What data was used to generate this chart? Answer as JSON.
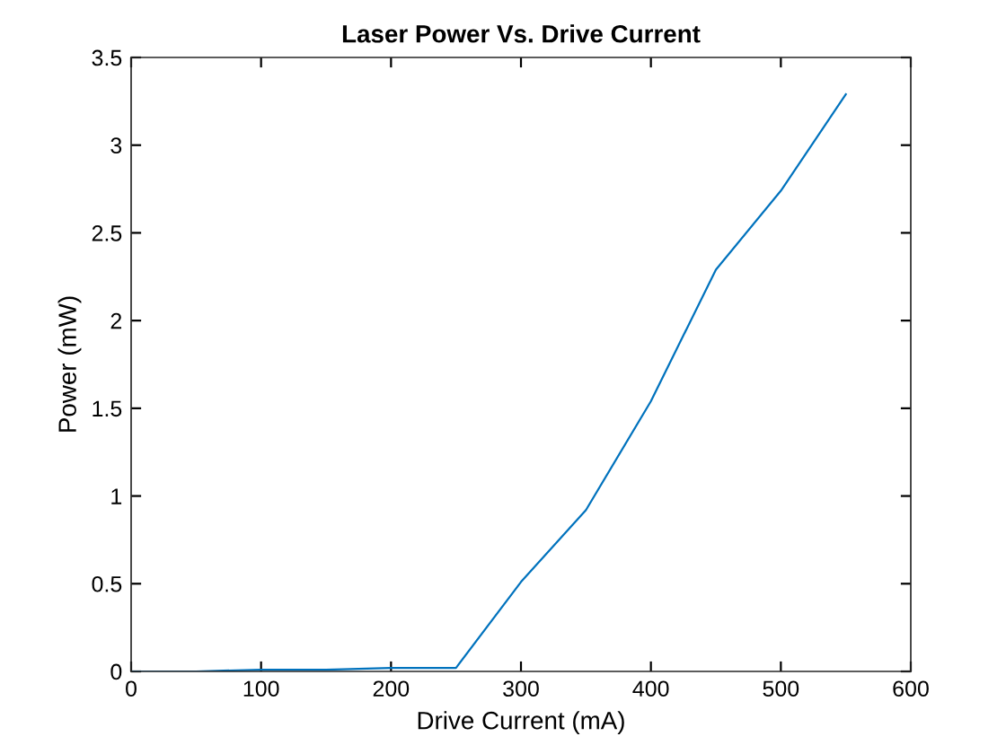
{
  "chart_data": {
    "type": "line",
    "title": "Laser Power Vs. Drive Current",
    "xlabel": "Drive Current (mA)",
    "ylabel": "Power (mW)",
    "x": [
      0,
      50,
      100,
      150,
      200,
      250,
      300,
      350,
      400,
      450,
      500,
      550
    ],
    "series": [
      {
        "color": "#0072bd",
        "values": [
          0,
          0,
          0.01,
          0.01,
          0.02,
          0.02,
          0.51,
          0.92,
          1.54,
          2.29,
          2.74,
          3.29
        ]
      }
    ],
    "xlim": [
      0,
      600
    ],
    "xticks": [
      0,
      100,
      200,
      300,
      400,
      500,
      600
    ],
    "ylim": [
      0,
      3.5
    ],
    "yticks": [
      0,
      0.5,
      1,
      1.5,
      2,
      2.5,
      3,
      3.5
    ],
    "grid": false,
    "legend": false,
    "marker": "none",
    "line_style": "solid"
  }
}
